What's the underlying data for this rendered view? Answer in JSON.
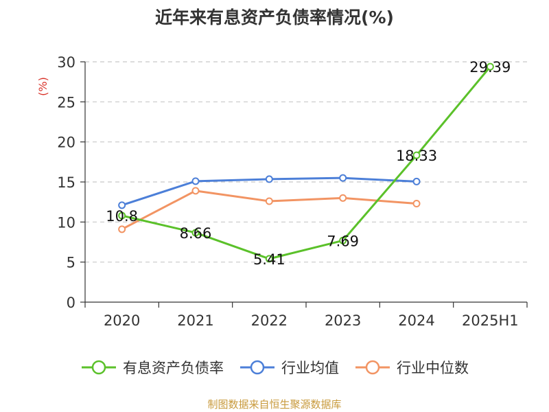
{
  "title": "近年来有息资产负债率情况(%)",
  "source": "制图数据来自恒生聚源数据库",
  "chart_data": {
    "type": "line",
    "title": "近年来有息资产负债率情况(%)",
    "ylabel": "(%)",
    "xlabel": "",
    "categories": [
      "2020",
      "2021",
      "2022",
      "2023",
      "2024",
      "2025H1"
    ],
    "yticks": [
      "0",
      "5",
      "10",
      "15",
      "20",
      "25",
      "30"
    ],
    "ylim": [
      0,
      30
    ],
    "grid": true,
    "legend_position": "bottom",
    "series": [
      {
        "name": "有息资产负债率",
        "color": "#5bc12a",
        "values": [
          10.8,
          8.66,
          5.41,
          7.69,
          18.33,
          29.39
        ],
        "labels": [
          "10.8",
          "8.66",
          "5.41",
          "7.69",
          "18.33",
          "29.39"
        ]
      },
      {
        "name": "行业均值",
        "color": "#4c7fd8",
        "values": [
          12.1,
          15.1,
          15.35,
          15.5,
          15.05,
          null
        ],
        "labels": []
      },
      {
        "name": "行业中位数",
        "color": "#f29463",
        "values": [
          9.1,
          13.9,
          12.6,
          13.0,
          12.3,
          null
        ],
        "labels": []
      }
    ]
  }
}
